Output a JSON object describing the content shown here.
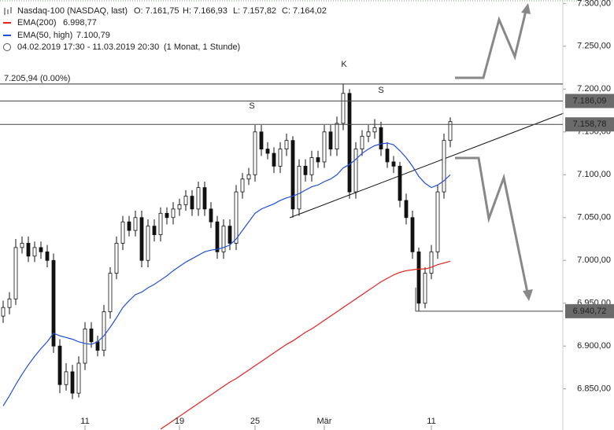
{
  "chart_data": {
    "type": "candlestick",
    "title": "Nasdaq-100 (NASDAQ, last)",
    "ohlc_labels": [
      "O: 7.161,75",
      "H: 7.166,93",
      "L: 7.157,82",
      "C: 7.164,02"
    ],
    "period": "04.02.2019 17:30 - 11.03.2019 20:30",
    "interval": "(1 Monat, 1 Stunde)",
    "categories": [
      null,
      null,
      null,
      null,
      null,
      null,
      null,
      null,
      null,
      null,
      null,
      null,
      null,
      "11",
      null,
      null,
      null,
      null,
      null,
      null,
      null,
      null,
      null,
      null,
      null,
      null,
      null,
      null,
      "19",
      null,
      null,
      null,
      null,
      null,
      null,
      null,
      null,
      null,
      null,
      null,
      "25",
      null,
      null,
      null,
      null,
      null,
      null,
      null,
      null,
      null,
      null,
      "Mär",
      null,
      null,
      null,
      null,
      null,
      null,
      null,
      null,
      null,
      null,
      null,
      null,
      null,
      null,
      null,
      null,
      "11",
      null,
      null,
      null
    ],
    "open": [
      6935,
      6945,
      6955,
      7015,
      7020,
      7005,
      7015,
      7010,
      7000,
      6900,
      6855,
      6870,
      6845,
      6880,
      6920,
      6905,
      6895,
      6940,
      6985,
      7020,
      7045,
      7035,
      7050,
      7000,
      7040,
      7030,
      7055,
      7050,
      7060,
      7065,
      7075,
      7060,
      7085,
      7060,
      7045,
      7010,
      7040,
      7020,
      7080,
      7095,
      7100,
      7150,
      7130,
      7125,
      7110,
      7130,
      7140,
      7060,
      7110,
      7100,
      7120,
      7115,
      7150,
      7130,
      7160,
      7195,
      7080,
      7130,
      7145,
      7150,
      7155,
      7130,
      7115,
      7110,
      7070,
      7050,
      7010,
      6950,
      6985,
      7010,
      7080,
      7140
    ],
    "high": [
      6953,
      6963,
      7025,
      7028,
      7028,
      7022,
      7022,
      7018,
      7008,
      6908,
      6880,
      6878,
      6888,
      6928,
      6928,
      6912,
      6948,
      6992,
      7028,
      7052,
      7052,
      7058,
      7058,
      7048,
      7048,
      7062,
      7062,
      7068,
      7072,
      7082,
      7082,
      7092,
      7092,
      7068,
      7052,
      7048,
      7048,
      7088,
      7102,
      7108,
      7158,
      7158,
      7138,
      7132,
      7138,
      7148,
      7145,
      7118,
      7118,
      7128,
      7128,
      7158,
      7158,
      7168,
      7206,
      7200,
      7138,
      7152,
      7158,
      7165,
      7162,
      7138,
      7122,
      7115,
      7078,
      7058,
      7015,
      6992,
      7018,
      7088,
      7148,
      7167
    ],
    "low": [
      6927,
      6937,
      6948,
      7008,
      6998,
      6998,
      7002,
      6992,
      6892,
      6845,
      6848,
      6838,
      6840,
      6872,
      6898,
      6888,
      6888,
      6932,
      6978,
      7012,
      7028,
      7028,
      6992,
      6992,
      7022,
      7022,
      7042,
      7042,
      7052,
      7058,
      7052,
      7052,
      7052,
      7038,
      7002,
      7002,
      7012,
      7012,
      7072,
      7088,
      7092,
      7122,
      7118,
      7102,
      7102,
      7122,
      7050,
      7052,
      7092,
      7092,
      7108,
      7108,
      7122,
      7122,
      7152,
      7072,
      7072,
      7122,
      7138,
      7142,
      7122,
      7108,
      7102,
      7062,
      7042,
      7002,
      6941,
      6944,
      6978,
      7002,
      7072,
      7132
    ],
    "close": [
      6945,
      6955,
      7015,
      7020,
      7005,
      7015,
      7010,
      7000,
      6900,
      6855,
      6870,
      6845,
      6880,
      6920,
      6905,
      6895,
      6940,
      6985,
      7020,
      7045,
      7035,
      7050,
      7000,
      7040,
      7030,
      7055,
      7050,
      7060,
      7065,
      7075,
      7060,
      7085,
      7060,
      7045,
      7010,
      7040,
      7020,
      7080,
      7095,
      7100,
      7150,
      7130,
      7125,
      7110,
      7130,
      7140,
      7060,
      7110,
      7100,
      7120,
      7115,
      7150,
      7130,
      7160,
      7195,
      7080,
      7130,
      7145,
      7150,
      7155,
      7130,
      7115,
      7110,
      7070,
      7050,
      7010,
      6950,
      6985,
      7010,
      7080,
      7140,
      7162
    ],
    "series": [
      {
        "name": "EMA(200)",
        "last_label": "6.998,77",
        "color": "#e8211c",
        "values": [
          null,
          null,
          null,
          null,
          null,
          null,
          null,
          null,
          null,
          null,
          null,
          null,
          null,
          null,
          null,
          null,
          null,
          null,
          null,
          null,
          null,
          null,
          null,
          null,
          null,
          6803,
          6808,
          6813,
          6818,
          6823,
          6828,
          6833,
          6838,
          6843,
          6848,
          6853,
          6858,
          6862,
          6867,
          6872,
          6877,
          6882,
          6887,
          6892,
          6897,
          6902,
          6906,
          6911,
          6916,
          6920,
          6925,
          6930,
          6935,
          6940,
          6945,
          6950,
          6955,
          6960,
          6965,
          6970,
          6975,
          6979,
          6983,
          6986,
          6988,
          6989,
          6990,
          6990,
          6992,
          6995,
          6997,
          6999
        ]
      },
      {
        "name": "EMA(50, high)",
        "last_label": "7.100,79",
        "color": "#1f4fe0",
        "values": [
          6830,
          6842,
          6855,
          6867,
          6878,
          6888,
          6897,
          6905,
          6915,
          6912,
          6910,
          6908,
          6905,
          6903,
          6902,
          6905,
          6912,
          6922,
          6933,
          6945,
          6953,
          6960,
          6963,
          6968,
          6972,
          6977,
          6982,
          6988,
          6993,
          6998,
          7002,
          7006,
          7010,
          7012,
          7013,
          7015,
          7018,
          7025,
          7035,
          7045,
          7055,
          7060,
          7063,
          7066,
          7070,
          7073,
          7075,
          7078,
          7082,
          7086,
          7088,
          7092,
          7095,
          7100,
          7108,
          7112,
          7118,
          7125,
          7130,
          7134,
          7136,
          7137,
          7135,
          7128,
          7120,
          7110,
          7098,
          7090,
          7085,
          7088,
          7093,
          7100
        ]
      }
    ],
    "ylim": [
      6802,
      7304
    ],
    "yticks": [
      {
        "value": 6850,
        "label": "6.850,00"
      },
      {
        "value": 6900,
        "label": "6.900,00"
      },
      {
        "value": 6950,
        "label": "6.950,00"
      },
      {
        "value": 7000,
        "label": "7.000,00"
      },
      {
        "value": 7050,
        "label": "7.050,00"
      },
      {
        "value": 7100,
        "label": "7.100,00"
      },
      {
        "value": 7150,
        "label": "7.150,00"
      },
      {
        "value": 7200,
        "label": "7.200,00"
      },
      {
        "value": 7250,
        "label": "7.250,00"
      },
      {
        "value": 7300,
        "label": "7.300,00"
      }
    ],
    "reference_line": {
      "value": 7205.94,
      "label": "7.205,94 (0.00%)"
    },
    "price_lines": [
      {
        "value": 7186.09,
        "label": "7.186,09"
      },
      {
        "value": 7158.78,
        "label": "7.158,78"
      },
      {
        "value": 6940.72,
        "label": "6.940,72"
      }
    ],
    "annotations": [
      "S",
      "K",
      "S"
    ]
  }
}
